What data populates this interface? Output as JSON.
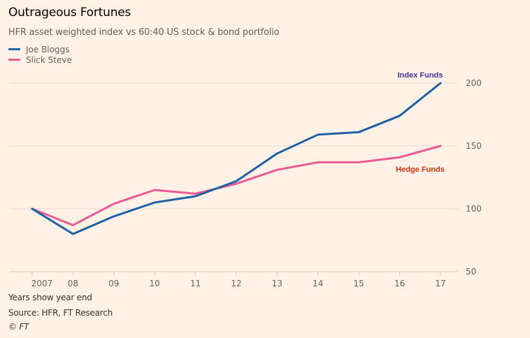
{
  "chart_data": {
    "type": "line",
    "title": "Outrageous Fortunes",
    "subtitle": "HFR asset weighted index vs 60:40 US stock & bond portfolio",
    "xlabel": "",
    "ylabel": "",
    "categories": [
      "2007",
      "08",
      "09",
      "10",
      "11",
      "12",
      "13",
      "14",
      "15",
      "16",
      "17"
    ],
    "ylim": [
      50,
      200
    ],
    "yticks": [
      50,
      100,
      150,
      200
    ],
    "grid": true,
    "y_axis_side": "right",
    "legend_placement": "top-left",
    "series": [
      {
        "name": "Joe Bloggs",
        "color": "#1f5fa4",
        "annotation": "Index Funds",
        "annotation_color": "#4b2e9c",
        "values": [
          100,
          80,
          94,
          105,
          110,
          122,
          144,
          159,
          161,
          174,
          200
        ]
      },
      {
        "name": "Slick Steve",
        "color": "#ec5a93",
        "annotation": "Hedge Funds",
        "annotation_color": "#e0310f",
        "values": [
          100,
          87,
          104,
          115,
          112,
          120,
          131,
          137,
          137,
          141,
          150
        ]
      }
    ]
  },
  "footer": {
    "note": "Years show year end",
    "source": "Source: HFR, FT Research",
    "copyright": "© FT"
  }
}
